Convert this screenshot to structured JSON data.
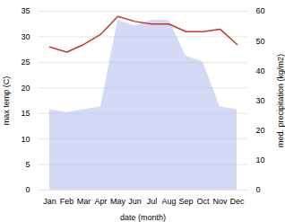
{
  "chart_data": {
    "type": "line",
    "categories": [
      "Jan",
      "Feb",
      "Mar",
      "Apr",
      "May",
      "Jun",
      "Jul",
      "Aug",
      "Sep",
      "Oct",
      "Nov",
      "Dec"
    ],
    "xlabel": "date (month)",
    "ylabel": "max temp (C)",
    "y2label": "med. precipitation (kg/m2)",
    "ylim": [
      0,
      35
    ],
    "yticks": [
      0,
      5,
      10,
      15,
      20,
      25,
      30,
      35
    ],
    "y2lim": [
      0,
      60
    ],
    "y2ticks": [
      0,
      10,
      20,
      30,
      40,
      50,
      60
    ],
    "grid": true,
    "series": [
      {
        "type": "area",
        "axis": "y2",
        "color": "#b0bbee",
        "values": [
          27.0,
          26.0,
          27.0,
          28.0,
          57.0,
          55.0,
          57.0,
          57.0,
          45.0,
          43.0,
          28.0,
          27.0
        ]
      },
      {
        "type": "line",
        "color": "#c0392b",
        "values": [
          28.0,
          27.0,
          28.5,
          30.5,
          34.0,
          33.0,
          32.5,
          32.5,
          31.0,
          31.0,
          31.5,
          28.5
        ]
      }
    ]
  }
}
